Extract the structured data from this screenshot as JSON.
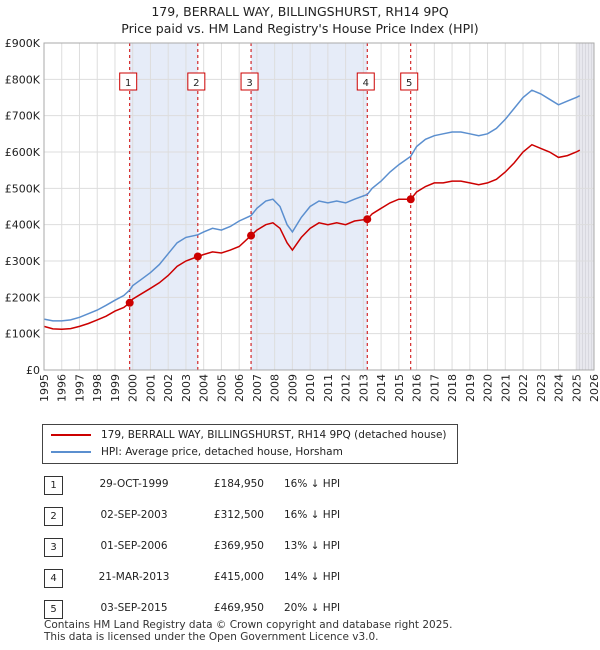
{
  "title_line1": "179, BERRALL WAY, BILLINGSHURST, RH14 9PQ",
  "title_line2": "Price paid vs. HM Land Registry's House Price Index (HPI)",
  "legend": [
    {
      "label": "179, BERRALL WAY, BILLINGSHURST, RH14 9PQ (detached house)",
      "color": "#cc0000"
    },
    {
      "label": "HPI: Average price, detached house, Horsham",
      "color": "#5b8fcf"
    }
  ],
  "transactions": [
    {
      "num": "1",
      "date": "29-OCT-1999",
      "price": "£184,950",
      "hpi": "16% ↓ HPI"
    },
    {
      "num": "2",
      "date": "02-SEP-2003",
      "price": "£312,500",
      "hpi": "16% ↓ HPI"
    },
    {
      "num": "3",
      "date": "01-SEP-2006",
      "price": "£369,950",
      "hpi": "13% ↓ HPI"
    },
    {
      "num": "4",
      "date": "21-MAR-2013",
      "price": "£415,000",
      "hpi": "14% ↓ HPI"
    },
    {
      "num": "5",
      "date": "03-SEP-2015",
      "price": "£469,950",
      "hpi": "20% ↓ HPI"
    }
  ],
  "footer_line1": "Contains HM Land Registry data © Crown copyright and database right 2025.",
  "footer_line2": "This data is licensed under the Open Government Licence v3.0.",
  "chart_data": {
    "type": "line",
    "x_range": [
      1995,
      2026
    ],
    "ylim": [
      0,
      900000
    ],
    "x_ticks": [
      "1995",
      "1996",
      "1997",
      "1998",
      "1999",
      "2000",
      "2001",
      "2002",
      "2003",
      "2004",
      "2005",
      "2006",
      "2007",
      "2008",
      "2009",
      "2010",
      "2011",
      "2012",
      "2013",
      "2014",
      "2015",
      "2016",
      "2017",
      "2018",
      "2019",
      "2020",
      "2021",
      "2022",
      "2023",
      "2024",
      "2025",
      "2026"
    ],
    "y_ticks": [
      {
        "value": 0,
        "label": "£0"
      },
      {
        "value": 100000,
        "label": "£100K"
      },
      {
        "value": 200000,
        "label": "£200K"
      },
      {
        "value": 300000,
        "label": "£300K"
      },
      {
        "value": 400000,
        "label": "£400K"
      },
      {
        "value": 500000,
        "label": "£500K"
      },
      {
        "value": 600000,
        "label": "£600K"
      },
      {
        "value": 700000,
        "label": "£700K"
      },
      {
        "value": 800000,
        "label": "£800K"
      },
      {
        "value": 900000,
        "label": "£900K"
      }
    ],
    "grid": true,
    "shaded_periods": [
      [
        1999.83,
        2003.67
      ],
      [
        2006.67,
        2013.22
      ],
      [
        2015.67,
        2015.67
      ],
      [
        2025.0,
        2026.0
      ]
    ],
    "series": [
      {
        "name": "179, BERRALL WAY, BILLINGSHURST, RH14 9PQ (detached house)",
        "color": "#cc0000",
        "points": [
          [
            1995.0,
            120000
          ],
          [
            1995.5,
            113000
          ],
          [
            1996.0,
            112000
          ],
          [
            1996.5,
            114000
          ],
          [
            1997.0,
            120000
          ],
          [
            1997.5,
            128000
          ],
          [
            1998.0,
            138000
          ],
          [
            1998.5,
            148000
          ],
          [
            1999.0,
            162000
          ],
          [
            1999.5,
            172000
          ],
          [
            1999.83,
            184950
          ],
          [
            2000.0,
            195000
          ],
          [
            2000.5,
            210000
          ],
          [
            2001.0,
            225000
          ],
          [
            2001.5,
            240000
          ],
          [
            2002.0,
            260000
          ],
          [
            2002.5,
            285000
          ],
          [
            2003.0,
            300000
          ],
          [
            2003.67,
            312500
          ],
          [
            2004.0,
            318000
          ],
          [
            2004.5,
            325000
          ],
          [
            2005.0,
            322000
          ],
          [
            2005.5,
            330000
          ],
          [
            2006.0,
            340000
          ],
          [
            2006.67,
            369950
          ],
          [
            2007.0,
            385000
          ],
          [
            2007.5,
            400000
          ],
          [
            2007.9,
            405000
          ],
          [
            2008.3,
            390000
          ],
          [
            2008.7,
            350000
          ],
          [
            2009.0,
            330000
          ],
          [
            2009.5,
            365000
          ],
          [
            2010.0,
            390000
          ],
          [
            2010.5,
            405000
          ],
          [
            2011.0,
            400000
          ],
          [
            2011.5,
            405000
          ],
          [
            2012.0,
            400000
          ],
          [
            2012.5,
            410000
          ],
          [
            2013.22,
            415000
          ],
          [
            2013.5,
            430000
          ],
          [
            2014.0,
            445000
          ],
          [
            2014.5,
            460000
          ],
          [
            2015.0,
            470000
          ],
          [
            2015.67,
            469950
          ],
          [
            2016.0,
            490000
          ],
          [
            2016.5,
            505000
          ],
          [
            2017.0,
            515000
          ],
          [
            2017.5,
            515000
          ],
          [
            2018.0,
            520000
          ],
          [
            2018.5,
            520000
          ],
          [
            2019.0,
            515000
          ],
          [
            2019.5,
            510000
          ],
          [
            2020.0,
            515000
          ],
          [
            2020.5,
            525000
          ],
          [
            2021.0,
            545000
          ],
          [
            2021.5,
            570000
          ],
          [
            2022.0,
            600000
          ],
          [
            2022.5,
            620000
          ],
          [
            2023.0,
            610000
          ],
          [
            2023.5,
            600000
          ],
          [
            2024.0,
            585000
          ],
          [
            2024.5,
            590000
          ],
          [
            2025.0,
            600000
          ],
          [
            2025.2,
            605000
          ]
        ]
      },
      {
        "name": "HPI: Average price, detached house, Horsham",
        "color": "#5b8fcf",
        "points": [
          [
            1995.0,
            140000
          ],
          [
            1995.5,
            135000
          ],
          [
            1996.0,
            135000
          ],
          [
            1996.5,
            138000
          ],
          [
            1997.0,
            145000
          ],
          [
            1997.5,
            155000
          ],
          [
            1998.0,
            165000
          ],
          [
            1998.5,
            178000
          ],
          [
            1999.0,
            192000
          ],
          [
            1999.5,
            205000
          ],
          [
            1999.83,
            220000
          ],
          [
            2000.0,
            232000
          ],
          [
            2000.5,
            250000
          ],
          [
            2001.0,
            268000
          ],
          [
            2001.5,
            290000
          ],
          [
            2002.0,
            320000
          ],
          [
            2002.5,
            350000
          ],
          [
            2003.0,
            365000
          ],
          [
            2003.67,
            372000
          ],
          [
            2004.0,
            380000
          ],
          [
            2004.5,
            390000
          ],
          [
            2005.0,
            385000
          ],
          [
            2005.5,
            395000
          ],
          [
            2006.0,
            410000
          ],
          [
            2006.67,
            425000
          ],
          [
            2007.0,
            445000
          ],
          [
            2007.5,
            465000
          ],
          [
            2007.9,
            470000
          ],
          [
            2008.3,
            450000
          ],
          [
            2008.7,
            400000
          ],
          [
            2009.0,
            380000
          ],
          [
            2009.5,
            420000
          ],
          [
            2010.0,
            450000
          ],
          [
            2010.5,
            465000
          ],
          [
            2011.0,
            460000
          ],
          [
            2011.5,
            465000
          ],
          [
            2012.0,
            460000
          ],
          [
            2012.5,
            470000
          ],
          [
            2013.22,
            483000
          ],
          [
            2013.5,
            500000
          ],
          [
            2014.0,
            520000
          ],
          [
            2014.5,
            545000
          ],
          [
            2015.0,
            565000
          ],
          [
            2015.67,
            588000
          ],
          [
            2016.0,
            615000
          ],
          [
            2016.5,
            635000
          ],
          [
            2017.0,
            645000
          ],
          [
            2017.5,
            650000
          ],
          [
            2018.0,
            655000
          ],
          [
            2018.5,
            655000
          ],
          [
            2019.0,
            650000
          ],
          [
            2019.5,
            645000
          ],
          [
            2020.0,
            650000
          ],
          [
            2020.5,
            665000
          ],
          [
            2021.0,
            690000
          ],
          [
            2021.5,
            720000
          ],
          [
            2022.0,
            750000
          ],
          [
            2022.5,
            770000
          ],
          [
            2023.0,
            760000
          ],
          [
            2023.5,
            745000
          ],
          [
            2024.0,
            730000
          ],
          [
            2024.5,
            740000
          ],
          [
            2025.0,
            750000
          ],
          [
            2025.2,
            755000
          ]
        ]
      }
    ],
    "markers": [
      {
        "label": "1",
        "x": 1999.83,
        "y": 184950
      },
      {
        "label": "2",
        "x": 2003.67,
        "y": 312500
      },
      {
        "label": "3",
        "x": 2006.67,
        "y": 369950
      },
      {
        "label": "4",
        "x": 2013.22,
        "y": 415000
      },
      {
        "label": "5",
        "x": 2015.67,
        "y": 469950
      }
    ]
  }
}
